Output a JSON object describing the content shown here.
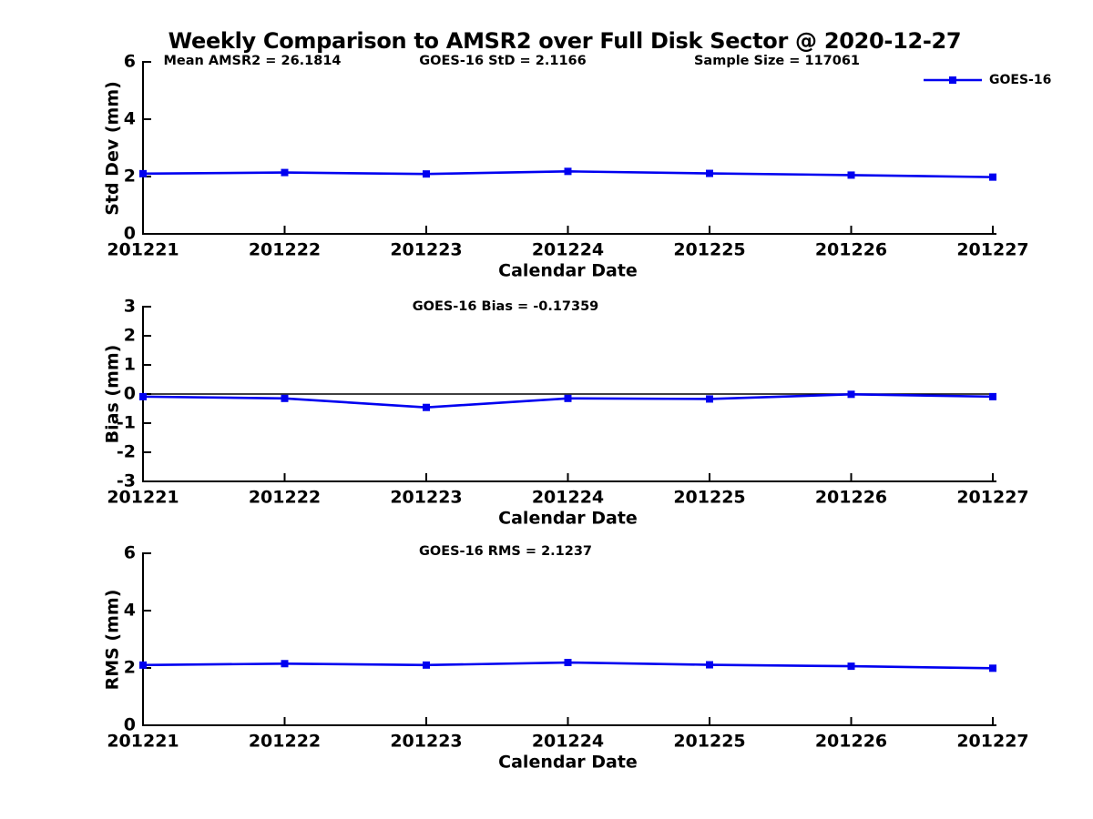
{
  "title": "Weekly Comparison to AMSR2 over Full Disk Sector @ 2020-12-27",
  "annotations": {
    "mean_amsr2": "Mean AMSR2 = 26.1814",
    "goes16_std": "GOES-16 StD = 2.1166",
    "sample_size": "Sample Size = 117061",
    "goes16_bias": "GOES-16 Bias  = -0.17359",
    "goes16_rms": "GOES-16 RMS = 2.1237"
  },
  "legend": {
    "label": "GOES-16",
    "position": "top-right"
  },
  "colors": {
    "line": "#0000f0",
    "marker": "#0000f0",
    "axis": "#000000",
    "zero_line": "#000000"
  },
  "chart_data": [
    {
      "id": "stddev",
      "type": "line",
      "x": [
        "201221",
        "201222",
        "201223",
        "201224",
        "201225",
        "201226",
        "201227"
      ],
      "series": [
        {
          "name": "GOES-16",
          "values": [
            2.1,
            2.14,
            2.09,
            2.18,
            2.11,
            2.05,
            1.98
          ]
        }
      ],
      "xlabel": "Calendar Date",
      "ylabel": "Std Dev (mm)",
      "ylim": [
        0,
        6
      ],
      "yticks": [
        0,
        2,
        4,
        6
      ],
      "grid": false,
      "zero_line": false,
      "marker": "square"
    },
    {
      "id": "bias",
      "type": "line",
      "x": [
        "201221",
        "201222",
        "201223",
        "201224",
        "201225",
        "201226",
        "201227"
      ],
      "series": [
        {
          "name": "GOES-16",
          "values": [
            -0.09,
            -0.15,
            -0.46,
            -0.15,
            -0.17,
            -0.01,
            -0.09
          ]
        }
      ],
      "xlabel": "Calendar Date",
      "ylabel": "Bias (mm)",
      "ylim": [
        -3,
        3
      ],
      "yticks": [
        -3,
        -2,
        -1,
        0,
        1,
        2,
        3
      ],
      "grid": false,
      "zero_line": true,
      "marker": "square"
    },
    {
      "id": "rms",
      "type": "line",
      "x": [
        "201221",
        "201222",
        "201223",
        "201224",
        "201225",
        "201226",
        "201227"
      ],
      "series": [
        {
          "name": "GOES-16",
          "values": [
            2.1,
            2.15,
            2.1,
            2.19,
            2.11,
            2.06,
            1.99
          ]
        }
      ],
      "xlabel": "Calendar Date",
      "ylabel": "RMS (mm)",
      "ylim": [
        0,
        6
      ],
      "yticks": [
        0,
        2,
        4,
        6
      ],
      "grid": false,
      "zero_line": false,
      "marker": "square"
    }
  ]
}
